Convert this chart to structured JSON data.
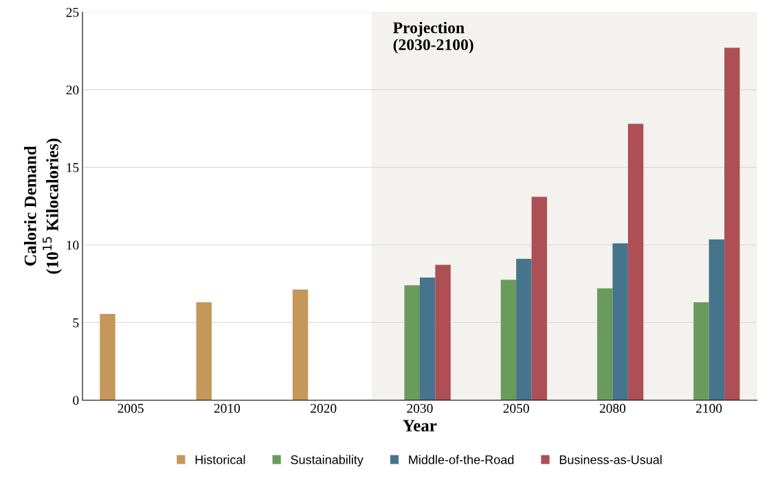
{
  "chart_data": {
    "type": "bar",
    "xlabel": "Year",
    "ylabel": "Caloric Demand\n(10$^{15}$ Kilocalories)",
    "categories": [
      "2005",
      "2010",
      "2020",
      "2030",
      "2050",
      "2080",
      "2100"
    ],
    "series": [
      {
        "name": "Historical",
        "color": "#c4975a",
        "values": [
          5.55,
          6.3,
          7.12,
          null,
          null,
          null,
          null
        ]
      },
      {
        "name": "Sustainability",
        "color": "#6a9a5c",
        "values": [
          null,
          null,
          null,
          7.4,
          7.75,
          7.2,
          6.3
        ]
      },
      {
        "name": "Middle-of-the-Road",
        "color": "#46748c",
        "values": [
          null,
          null,
          null,
          7.9,
          9.1,
          10.1,
          10.35
        ]
      },
      {
        "name": "Business-as-Usual",
        "color": "#ad4f55",
        "values": [
          null,
          null,
          null,
          8.72,
          13.1,
          17.8,
          22.7
        ]
      }
    ],
    "ylim": [
      0,
      25
    ],
    "yticks": [
      0,
      5,
      10,
      15,
      20,
      25
    ],
    "grid": "y",
    "legend": "bottom",
    "bands": [
      {
        "axis": "x",
        "from": "2030",
        "to": "2100",
        "label": "Projection\n(2030-2100)",
        "color": "#f3f2ee"
      }
    ]
  }
}
